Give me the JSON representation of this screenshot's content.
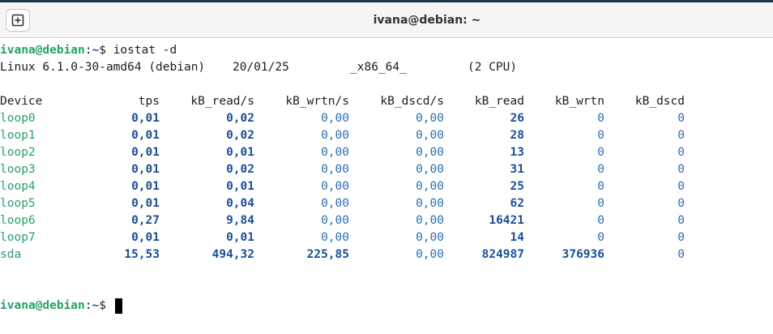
{
  "window": {
    "title": "ivana@debian: ~",
    "new_tab_icon": "plus-square-icon"
  },
  "terminal": {
    "prompt_user": "ivana@debian",
    "prompt_sep": ":",
    "prompt_path": "~",
    "prompt_symbol": "$",
    "command": "iostat -d",
    "sysinfo": {
      "kernel": "Linux 6.1.0-30-amd64 (debian)",
      "date": "20/01/25",
      "arch": "_x86_64_",
      "cpus": "(2 CPU)"
    },
    "headers": [
      "Device",
      "tps",
      "kB_read/s",
      "kB_wrtn/s",
      "kB_dscd/s",
      "kB_read",
      "kB_wrtn",
      "kB_dscd"
    ],
    "rows": [
      [
        "loop0",
        "0,01",
        "0,02",
        "0,00",
        "0,00",
        "26",
        "0",
        "0"
      ],
      [
        "loop1",
        "0,01",
        "0,02",
        "0,00",
        "0,00",
        "28",
        "0",
        "0"
      ],
      [
        "loop2",
        "0,01",
        "0,01",
        "0,00",
        "0,00",
        "13",
        "0",
        "0"
      ],
      [
        "loop3",
        "0,01",
        "0,02",
        "0,00",
        "0,00",
        "31",
        "0",
        "0"
      ],
      [
        "loop4",
        "0,01",
        "0,01",
        "0,00",
        "0,00",
        "25",
        "0",
        "0"
      ],
      [
        "loop5",
        "0,01",
        "0,04",
        "0,00",
        "0,00",
        "62",
        "0",
        "0"
      ],
      [
        "loop6",
        "0,27",
        "9,84",
        "0,00",
        "0,00",
        "16421",
        "0",
        "0"
      ],
      [
        "loop7",
        "0,01",
        "0,01",
        "0,00",
        "0,00",
        "14",
        "0",
        "0"
      ],
      [
        "sda",
        "15,53",
        "494,32",
        "225,85",
        "0,00",
        "824987",
        "376936",
        "0"
      ]
    ]
  }
}
